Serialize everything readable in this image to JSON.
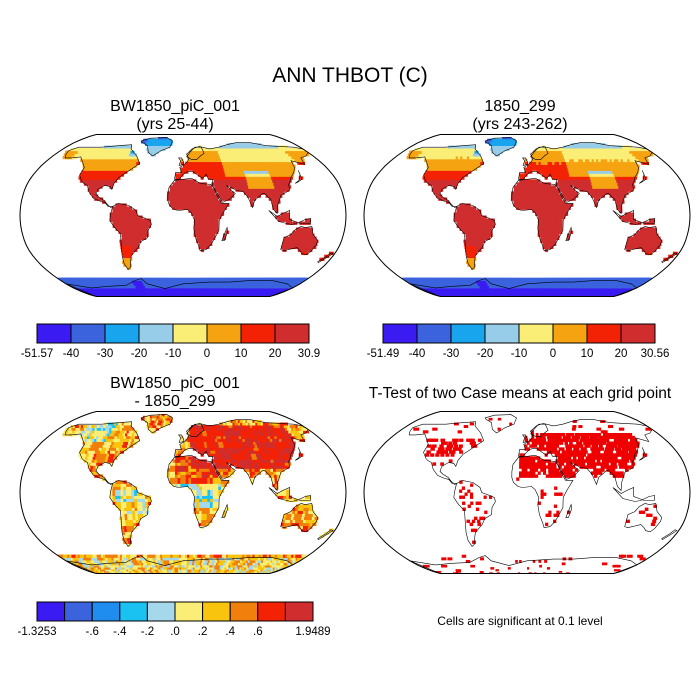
{
  "title": "ANN THBOT (C)",
  "panels": [
    {
      "title_line1": "BW1850_piC_001",
      "title_line2": "(yrs 25-44)",
      "colorbar": {
        "colors": [
          "#3a1bf2",
          "#3b63dd",
          "#19a4ee",
          "#97cde8",
          "#fbee76",
          "#f6a311",
          "#f42205",
          "#cf2d2e"
        ],
        "labels": [
          "-51.57",
          "-40",
          "-30",
          "-20",
          "-10",
          "0",
          "10",
          "20",
          "30.9"
        ]
      }
    },
    {
      "title_line1": "1850_299",
      "title_line2": "(yrs 243-262)",
      "colorbar": {
        "colors": [
          "#3a1bf2",
          "#3b63dd",
          "#19a4ee",
          "#97cde8",
          "#fbee76",
          "#f6a311",
          "#f42205",
          "#cf2d2e"
        ],
        "labels": [
          "-51.49",
          "-40",
          "-30",
          "-20",
          "-10",
          "0",
          "10",
          "20",
          "30.56"
        ]
      }
    },
    {
      "title_line1": "BW1850_piC_001",
      "title_line2": "- 1850_299",
      "colorbar": {
        "colors": [
          "#3a1bf2",
          "#3b63dd",
          "#1f8cf0",
          "#19c2f0",
          "#a6d8ec",
          "#fbee76",
          "#f8c40e",
          "#f07f0b",
          "#f42205",
          "#cf2d2e"
        ],
        "labels": [
          "-1.3253",
          "-.6",
          "-.4",
          "-.2",
          ".0",
          ".2",
          ".4",
          ".6",
          "1.9489"
        ]
      }
    },
    {
      "title_line1": "T-Test of two Case means at each grid point",
      "note": "Cells are significant at 0.1 level"
    }
  ],
  "chart_data": [
    {
      "type": "heatmap",
      "projection": "Robinson",
      "title": "BW1850_piC_001 (yrs 25-44)",
      "variable": "ANN THBOT (C)",
      "value_range": [
        -51.57,
        30.9
      ],
      "colorbar_levels": [
        -51.57,
        -40,
        -30,
        -20,
        -10,
        0,
        10,
        20,
        30.9
      ]
    },
    {
      "type": "heatmap",
      "projection": "Robinson",
      "title": "1850_299 (yrs 243-262)",
      "variable": "ANN THBOT (C)",
      "value_range": [
        -51.49,
        30.56
      ],
      "colorbar_levels": [
        -51.49,
        -40,
        -30,
        -20,
        -10,
        0,
        10,
        20,
        30.56
      ]
    },
    {
      "type": "heatmap",
      "projection": "Robinson",
      "title": "BW1850_piC_001 - 1850_299",
      "variable": "ANN THBOT (C)",
      "value_range": [
        -1.3253,
        1.9489
      ],
      "colorbar_levels": [
        -1.3253,
        -0.6,
        -0.4,
        -0.2,
        0.0,
        0.2,
        0.4,
        0.6,
        1.9489
      ]
    },
    {
      "type": "heatmap",
      "projection": "Robinson",
      "title": "T-Test of two Case means at each grid point",
      "significance_level": 0.1,
      "significant_color": "#ee0000"
    }
  ]
}
